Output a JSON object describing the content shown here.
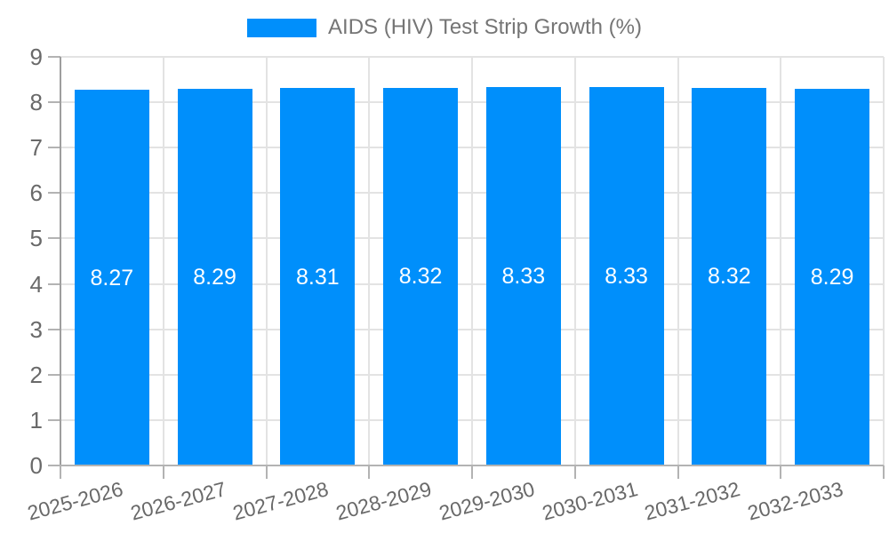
{
  "chart_data": {
    "type": "bar",
    "title": "",
    "series_name": "AIDS (HIV) Test Strip Growth (%)",
    "legend_position": "top-center",
    "categories": [
      "2025-2026",
      "2026-2027",
      "2027-2028",
      "2028-2029",
      "2029-2030",
      "2030-2031",
      "2031-2032",
      "2032-2033"
    ],
    "values": [
      8.27,
      8.29,
      8.31,
      8.32,
      8.33,
      8.33,
      8.32,
      8.29
    ],
    "value_labels": [
      "8.27",
      "8.29",
      "8.31",
      "8.32",
      "8.33",
      "8.33",
      "8.32",
      "8.29"
    ],
    "ylim": [
      0,
      9
    ],
    "ytick_step": 1,
    "yticks": [
      "0",
      "1",
      "2",
      "3",
      "4",
      "5",
      "6",
      "7",
      "8",
      "9"
    ],
    "grid": "horizontal and vertical light gridlines, ticks outside axes",
    "colors": {
      "bar": "#008FFB",
      "bar_label": "#FFFFFF",
      "axis_text": "#696969",
      "legend_text": "#757575",
      "gridline": "#E3E3E3",
      "axis_line": "#B3B3B3",
      "background": "#FFFFFF"
    }
  }
}
